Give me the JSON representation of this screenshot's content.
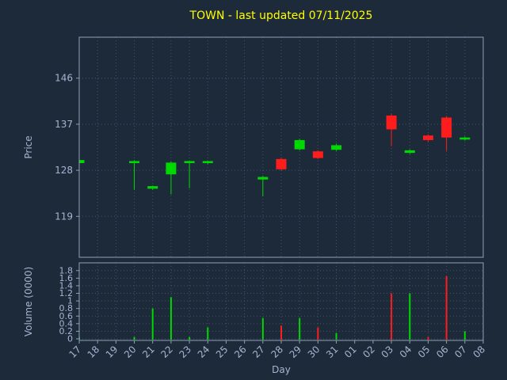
{
  "colors": {
    "background": "#1c2a3a",
    "grid": "#46536b",
    "spine": "#8fa0b4",
    "text": "#a6b4d2",
    "title": "#ffff00",
    "up": "#00d900",
    "down": "#ff1c1c"
  },
  "chart_data": [
    {
      "type": "candlestick",
      "title": "TOWN - last updated 07/11/2025",
      "ylabel": "Price",
      "xlabel": "Day",
      "ylim": [
        111,
        154
      ],
      "yticks": [
        119,
        128,
        137,
        146
      ],
      "grid": true,
      "categories": [
        "17",
        "18",
        "19",
        "20",
        "21",
        "22",
        "23",
        "24",
        "25",
        "26",
        "27",
        "28",
        "29",
        "30",
        "31",
        "01",
        "02",
        "03",
        "04",
        "05",
        "06",
        "07",
        "08"
      ],
      "series": [
        {
          "day": "17",
          "open": 129.4,
          "high": 130.1,
          "low": 129.2,
          "close": 130.0,
          "dir": "up"
        },
        {
          "day": "20",
          "open": 129.4,
          "high": 130.0,
          "low": 124.2,
          "close": 129.8,
          "dir": "up"
        },
        {
          "day": "21",
          "open": 124.4,
          "high": 125.0,
          "low": 124.2,
          "close": 124.9,
          "dir": "up"
        },
        {
          "day": "22",
          "open": 127.2,
          "high": 129.7,
          "low": 123.3,
          "close": 129.5,
          "dir": "up"
        },
        {
          "day": "23",
          "open": 129.4,
          "high": 129.9,
          "low": 124.5,
          "close": 129.8,
          "dir": "up"
        },
        {
          "day": "24",
          "open": 129.4,
          "high": 129.9,
          "low": 129.2,
          "close": 129.8,
          "dir": "up"
        },
        {
          "day": "27",
          "open": 126.2,
          "high": 126.9,
          "low": 122.9,
          "close": 126.7,
          "dir": "up"
        },
        {
          "day": "28",
          "open": 130.2,
          "high": 130.5,
          "low": 127.9,
          "close": 128.2,
          "dir": "down"
        },
        {
          "day": "29",
          "open": 132.1,
          "high": 134.1,
          "low": 131.9,
          "close": 133.9,
          "dir": "up"
        },
        {
          "day": "30",
          "open": 131.7,
          "high": 131.9,
          "low": 130.2,
          "close": 130.4,
          "dir": "down"
        },
        {
          "day": "31",
          "open": 132.0,
          "high": 133.2,
          "low": 131.8,
          "close": 132.9,
          "dir": "up"
        },
        {
          "day": "03",
          "open": 138.7,
          "high": 139.0,
          "low": 132.7,
          "close": 136.0,
          "dir": "down"
        },
        {
          "day": "04",
          "open": 131.4,
          "high": 132.1,
          "low": 131.2,
          "close": 131.9,
          "dir": "up"
        },
        {
          "day": "05",
          "open": 134.8,
          "high": 135.0,
          "low": 133.6,
          "close": 133.9,
          "dir": "down"
        },
        {
          "day": "06",
          "open": 138.3,
          "high": 138.6,
          "low": 131.8,
          "close": 134.4,
          "dir": "down"
        },
        {
          "day": "07",
          "open": 134.0,
          "high": 134.6,
          "low": 133.8,
          "close": 134.4,
          "dir": "up"
        }
      ]
    },
    {
      "type": "bar",
      "ylabel": "Volume (0000)",
      "ylim": [
        0,
        1.9
      ],
      "yticks": [
        0,
        0.2,
        0.4,
        0.6,
        0.8,
        1,
        1.2,
        1.4,
        1.6,
        1.8
      ],
      "grid": true,
      "categories": [
        "17",
        "18",
        "19",
        "20",
        "21",
        "22",
        "23",
        "24",
        "25",
        "26",
        "27",
        "28",
        "29",
        "30",
        "31",
        "01",
        "02",
        "03",
        "04",
        "05",
        "06",
        "07",
        "08"
      ],
      "values": [
        0.05,
        0,
        0,
        0.05,
        0.8,
        1.1,
        0.05,
        0.3,
        0,
        0,
        0.55,
        0.35,
        0.55,
        0.3,
        0.15,
        0,
        0,
        1.2,
        1.2,
        0.05,
        1.65,
        0.2,
        0
      ],
      "dirs": [
        "up",
        null,
        null,
        "up",
        "up",
        "up",
        "up",
        "up",
        null,
        null,
        "up",
        "down",
        "up",
        "down",
        "up",
        null,
        null,
        "down",
        "up",
        "down",
        "down",
        "up",
        null
      ]
    }
  ]
}
